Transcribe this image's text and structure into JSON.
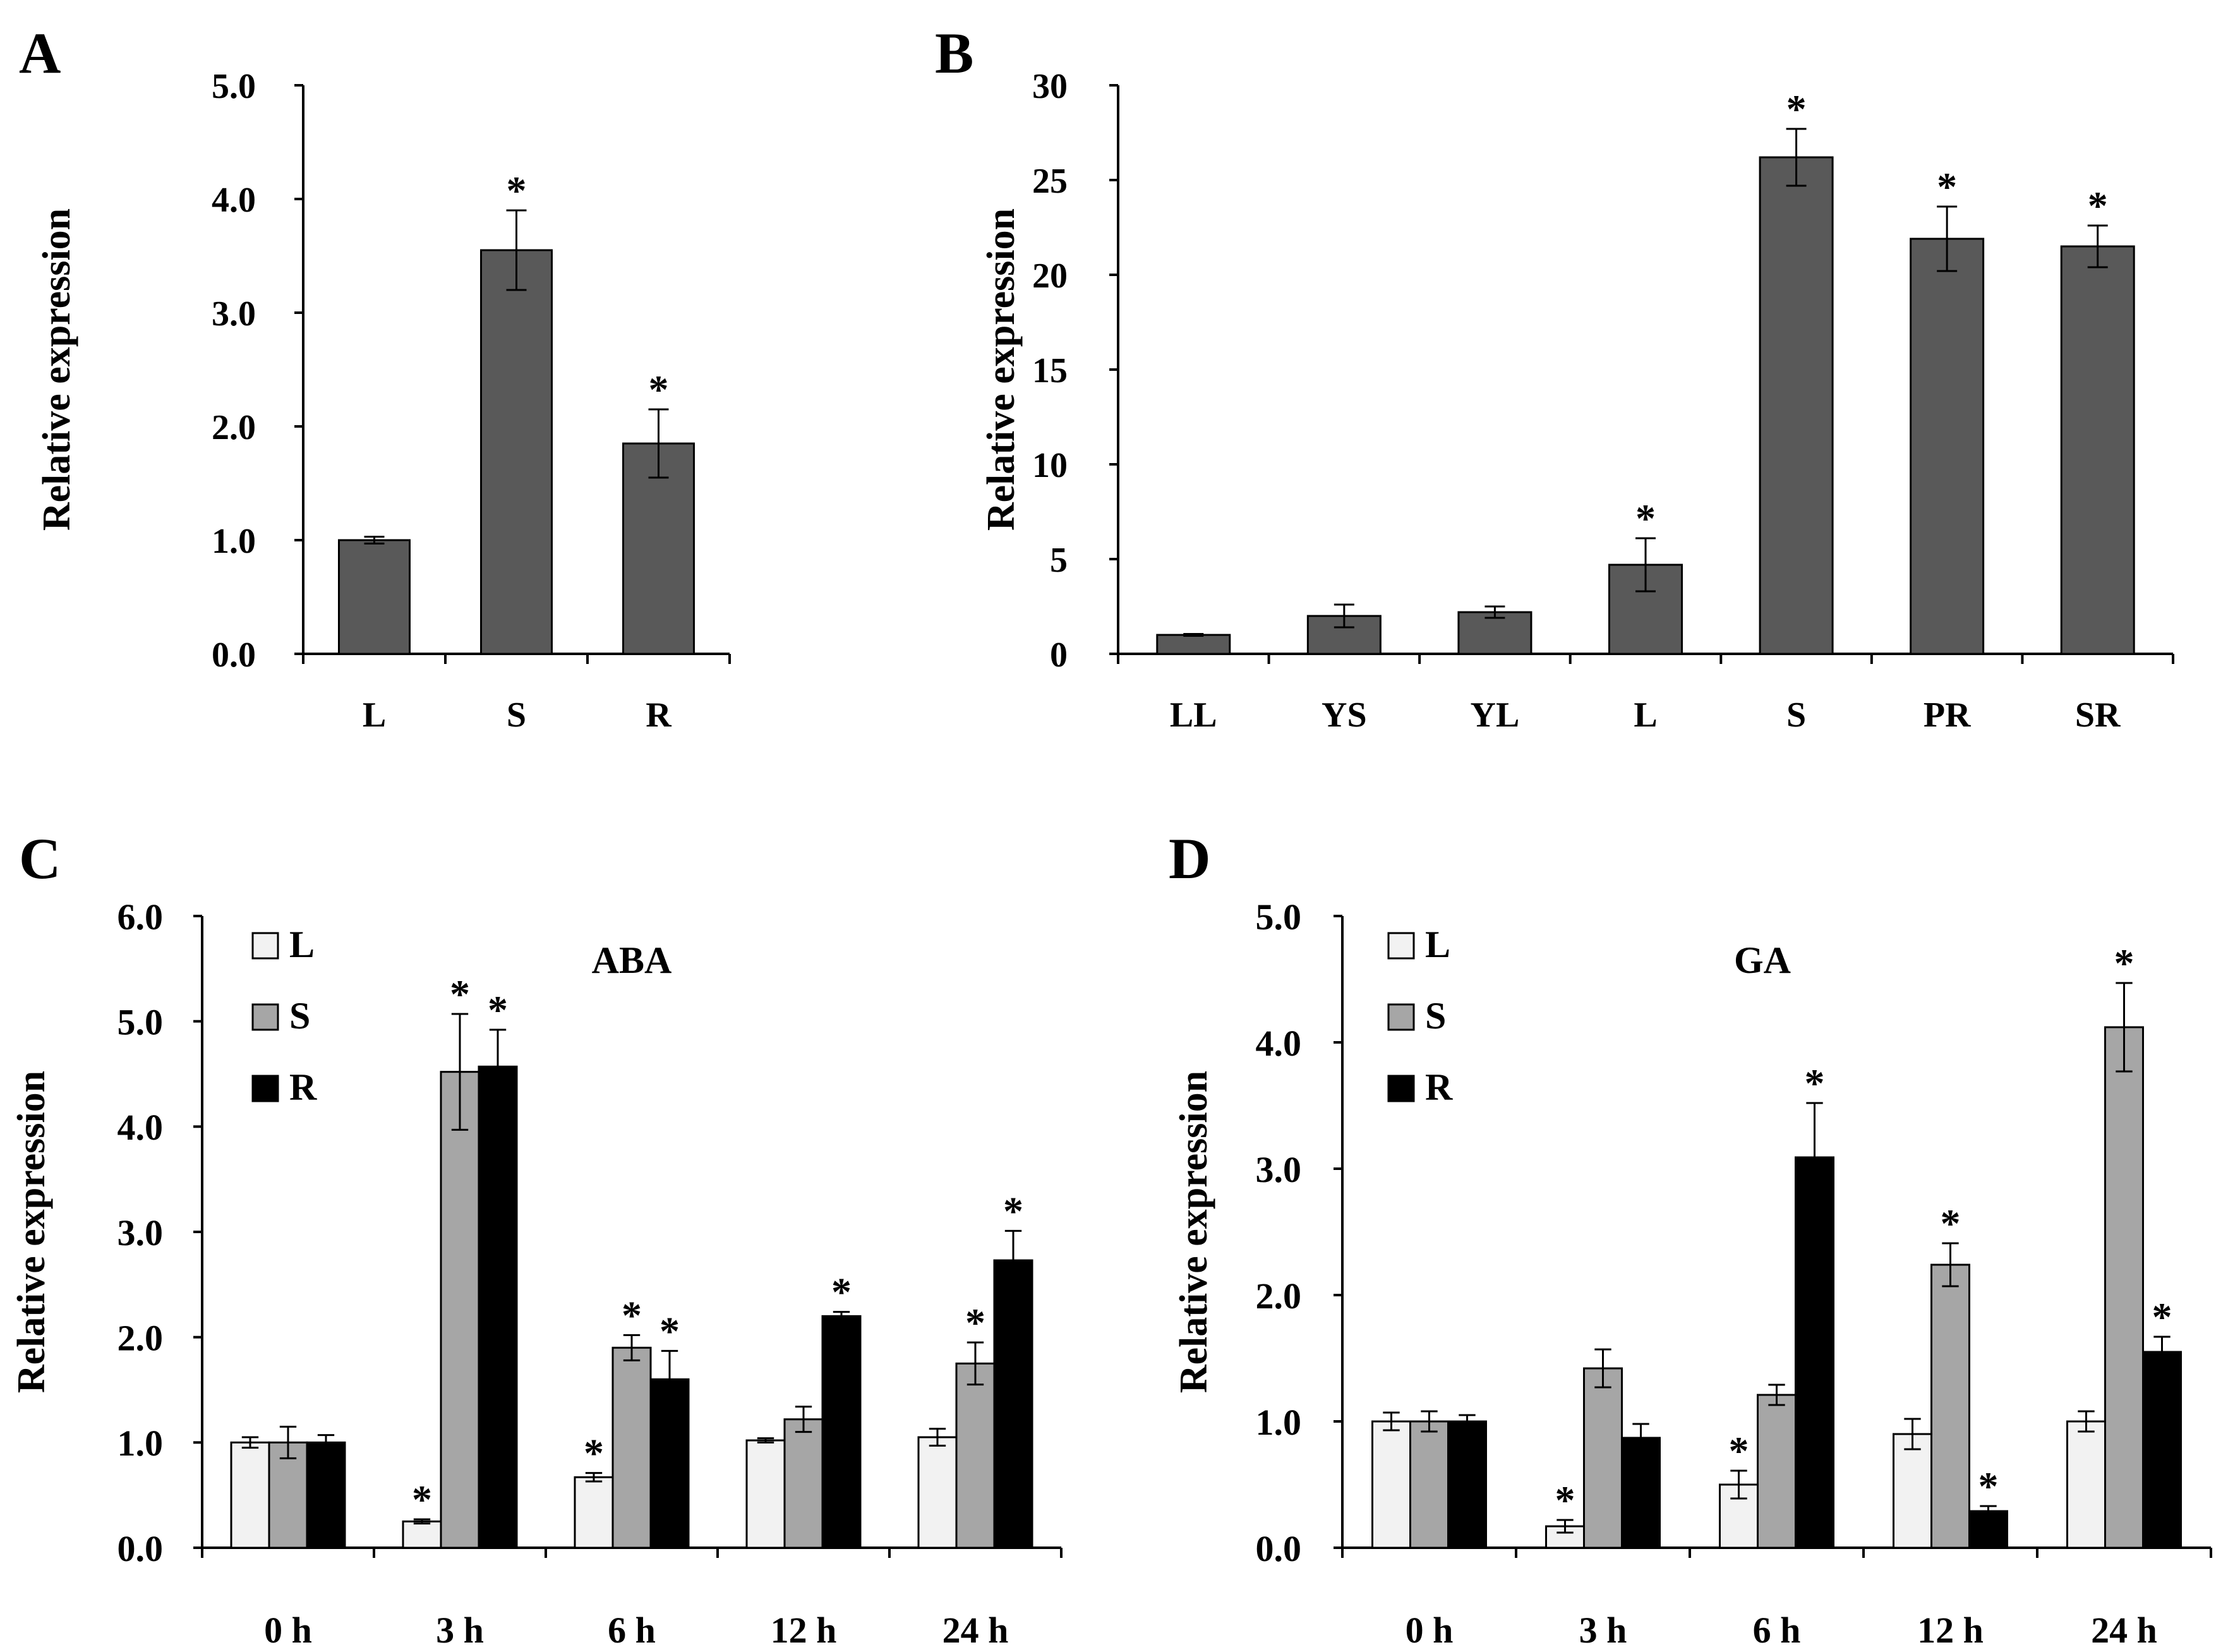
{
  "chart_data": [
    {
      "panel_label": "A",
      "type": "bar",
      "ylabel": "Relative expression",
      "ylim": [
        0,
        5
      ],
      "yticks": [
        "0.0",
        "1.0",
        "2.0",
        "3.0",
        "4.0",
        "5.0"
      ],
      "categories": [
        "L",
        "S",
        "R"
      ],
      "series": [
        {
          "values": [
            1.0,
            3.55,
            1.85
          ],
          "errors": [
            0.03,
            0.35,
            0.3
          ],
          "significant": [
            false,
            true,
            true
          ],
          "color": "#595959"
        }
      ],
      "significance_mark": "*"
    },
    {
      "panel_label": "B",
      "type": "bar",
      "ylabel": "Relative expression",
      "ylim": [
        0,
        30
      ],
      "yticks": [
        "0",
        "5",
        "10",
        "15",
        "20",
        "25",
        "30"
      ],
      "categories": [
        "LL",
        "YS",
        "YL",
        "L",
        "S",
        "PR",
        "SR"
      ],
      "series": [
        {
          "values": [
            1.0,
            2.0,
            2.2,
            4.7,
            26.2,
            21.9,
            21.5
          ],
          "errors": [
            0.05,
            0.6,
            0.3,
            1.4,
            1.5,
            1.7,
            1.1
          ],
          "significant": [
            false,
            false,
            false,
            true,
            true,
            true,
            true
          ],
          "color": "#595959"
        }
      ],
      "significance_mark": "*"
    },
    {
      "panel_label": "C",
      "type": "bar",
      "title": "ABA",
      "ylabel": "Relative expression",
      "ylim": [
        0,
        6
      ],
      "yticks": [
        "0.0",
        "1.0",
        "2.0",
        "3.0",
        "4.0",
        "5.0",
        "6.0"
      ],
      "categories": [
        "0 h",
        "3 h",
        "6 h",
        "12 h",
        "24 h"
      ],
      "legend_position": "top-left",
      "series": [
        {
          "name": "L",
          "color": "#f2f2f2",
          "values": [
            1.0,
            0.25,
            0.67,
            1.02,
            1.05
          ],
          "errors": [
            0.05,
            0.02,
            0.04,
            0.02,
            0.08
          ],
          "significant": [
            false,
            true,
            true,
            false,
            false
          ]
        },
        {
          "name": "S",
          "color": "#a6a6a6",
          "values": [
            1.0,
            4.52,
            1.9,
            1.22,
            1.75
          ],
          "errors": [
            0.15,
            0.55,
            0.12,
            0.12,
            0.2
          ],
          "significant": [
            false,
            true,
            true,
            false,
            true
          ]
        },
        {
          "name": "R",
          "color": "#000000",
          "values": [
            1.0,
            4.57,
            1.6,
            2.2,
            2.73
          ],
          "errors": [
            0.07,
            0.35,
            0.27,
            0.04,
            0.28
          ],
          "significant": [
            false,
            true,
            true,
            true,
            true
          ]
        }
      ],
      "significance_mark": "*"
    },
    {
      "panel_label": "D",
      "type": "bar",
      "title": "GA",
      "ylabel": "Relative expression",
      "ylim": [
        0,
        5
      ],
      "yticks": [
        "0.0",
        "1.0",
        "2.0",
        "3.0",
        "4.0",
        "5.0"
      ],
      "categories": [
        "0 h",
        "3 h",
        "6 h",
        "12 h",
        "24 h"
      ],
      "legend_position": "top-left",
      "series": [
        {
          "name": "L",
          "color": "#f2f2f2",
          "values": [
            1.0,
            0.17,
            0.5,
            0.9,
            1.0
          ],
          "errors": [
            0.07,
            0.05,
            0.11,
            0.12,
            0.08
          ],
          "significant": [
            false,
            true,
            true,
            false,
            false
          ]
        },
        {
          "name": "S",
          "color": "#a6a6a6",
          "values": [
            1.0,
            1.42,
            1.21,
            2.24,
            4.12
          ],
          "errors": [
            0.08,
            0.15,
            0.08,
            0.17,
            0.35
          ],
          "significant": [
            false,
            false,
            false,
            true,
            true
          ]
        },
        {
          "name": "R",
          "color": "#000000",
          "values": [
            1.0,
            0.87,
            3.09,
            0.29,
            1.55
          ],
          "errors": [
            0.05,
            0.11,
            0.43,
            0.04,
            0.12
          ],
          "significant": [
            false,
            false,
            true,
            true,
            true
          ]
        }
      ],
      "significance_mark": "*"
    }
  ]
}
